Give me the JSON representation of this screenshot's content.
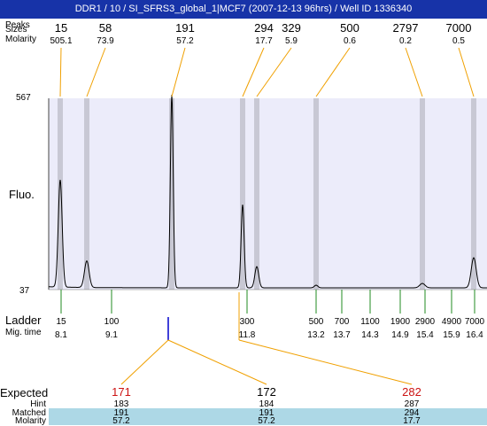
{
  "header": {
    "title": "DDR1 / 10 / SI_SFRS3_global_1|MCF7 (2007-12-13 96hrs) / Well ID 1336340"
  },
  "top_labels": {
    "row1": "Peaks",
    "row1b": "Sizes",
    "row2": "Molarity"
  },
  "peaks": [
    {
      "size": "15",
      "molarity": "505.1"
    },
    {
      "size": "58",
      "molarity": "73.9"
    },
    {
      "size": "191",
      "molarity": "57.2"
    },
    {
      "size": "294",
      "molarity": "17.7"
    },
    {
      "size": "329",
      "molarity": "5.9"
    },
    {
      "size": "500",
      "molarity": "0.6"
    },
    {
      "size": "2797",
      "molarity": "0.2"
    },
    {
      "size": "7000",
      "molarity": "0.5"
    }
  ],
  "axis": {
    "y_max": "567",
    "y_min": "37",
    "y_label": "Fluo."
  },
  "ladder": {
    "label": "Ladder",
    "mig_label": "Mig. time",
    "items": [
      {
        "size": "15",
        "time": "8.1"
      },
      {
        "size": "100",
        "time": "9.1"
      },
      {
        "size": "300",
        "time": "11.8"
      },
      {
        "size": "500",
        "time": "13.2"
      },
      {
        "size": "700",
        "time": "13.7"
      },
      {
        "size": "1100",
        "time": "14.3"
      },
      {
        "size": "1900",
        "time": "14.9"
      },
      {
        "size": "2900",
        "time": "15.4"
      },
      {
        "size": "4900",
        "time": "15.9"
      },
      {
        "size": "7000",
        "time": "16.4"
      }
    ]
  },
  "expected_table": {
    "row_labels": [
      "Expected",
      "Hint",
      "Matched",
      "Molarity"
    ],
    "columns": [
      {
        "expected": "171",
        "hint": "183",
        "matched": "191",
        "molarity": "57.2"
      },
      {
        "expected": "172",
        "hint": "184",
        "matched": "191",
        "molarity": "57.2"
      },
      {
        "expected": "282",
        "hint": "287",
        "matched": "294",
        "molarity": "17.7"
      }
    ]
  },
  "colors": {
    "title_bg": "#1733a8",
    "plot_bg": "#ececfa",
    "band": "#c8c8d4",
    "peak_line": "#f0a000",
    "ladder_tick": "#228b22",
    "marker": "#0000cc",
    "highlight_row": "#add8e6",
    "expected_red": "#cc1111"
  }
}
